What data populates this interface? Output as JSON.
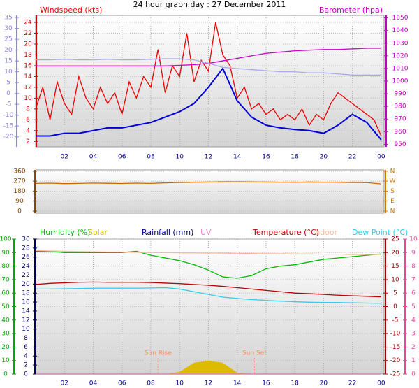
{
  "chart_data": [
    {
      "type": "line",
      "title": "24 hour graph day : 27 December 2011",
      "xlim": [
        0,
        24.2
      ],
      "xticks": [
        {
          "value": 2,
          "label": "02"
        },
        {
          "value": 4,
          "label": "04"
        },
        {
          "value": 6,
          "label": "06"
        },
        {
          "value": 8,
          "label": "08"
        },
        10,
        12,
        14,
        16,
        18,
        20,
        22,
        {
          "value": 24,
          "label": "00"
        }
      ],
      "ylim": [
        1,
        25.3
      ],
      "yticks": [
        2,
        4,
        6,
        8,
        10,
        12,
        14,
        16,
        18,
        20,
        22,
        24
      ],
      "y2lim": [
        948,
        1052
      ],
      "y2ticks": [
        950,
        960,
        970,
        980,
        990,
        1000,
        1010,
        1020,
        1030,
        1040,
        1050
      ],
      "y3lim": [
        -24.6,
        36
      ],
      "y3ticks": [
        -20,
        -15,
        -10,
        -5,
        0,
        5,
        10,
        15,
        20,
        25,
        30,
        35
      ],
      "axis_colors": {
        "y": "#cc0000",
        "y2": "#c000c0",
        "y3": "#8888dd"
      },
      "grid": true,
      "x": [
        0,
        1,
        2,
        3,
        4,
        5,
        6,
        7,
        8,
        9,
        10,
        11,
        12,
        13,
        14,
        15,
        16,
        17,
        18,
        19,
        20,
        21,
        22,
        23,
        24
      ],
      "series": [
        {
          "name": "Windspeed (kts)",
          "color": "#ee0000",
          "x": [
            0,
            0.5,
            1,
            1.5,
            2,
            2.5,
            3,
            3.5,
            4,
            4.5,
            5,
            5.5,
            6,
            6.5,
            7,
            7.5,
            8,
            8.5,
            9,
            9.5,
            10,
            10.5,
            11,
            11.5,
            12,
            12.5,
            13,
            13.5,
            14,
            14.5,
            15,
            15.5,
            16,
            16.5,
            17,
            17.5,
            18,
            18.5,
            19,
            19.5,
            20,
            20.5,
            21,
            21.5,
            22,
            22.5,
            23,
            23.5,
            24
          ],
          "values": [
            8,
            12,
            6,
            13,
            9,
            7,
            14,
            10,
            8,
            12,
            9,
            11,
            7,
            13,
            10,
            14,
            12,
            19,
            11,
            16,
            14,
            22,
            13,
            17,
            15,
            24,
            18,
            16,
            10,
            12,
            8,
            9,
            7,
            8,
            6,
            7,
            6,
            8,
            5,
            7,
            6,
            9,
            11,
            10,
            9,
            8,
            7,
            6,
            3
          ]
        },
        {
          "color": "#0000dd",
          "values": [
            3,
            3,
            3.5,
            3.5,
            4,
            4.5,
            4.5,
            5,
            5.5,
            6.5,
            7.5,
            9,
            12,
            15.5,
            9.5,
            6.5,
            5,
            4.5,
            4.2,
            4,
            3.5,
            5,
            7,
            5.5,
            2.3
          ]
        },
        {
          "name": "Barometer (hpa)",
          "color": "#cc00cc",
          "axis": "y2",
          "values": [
            1012,
            1012,
            1012,
            1012,
            1012,
            1012,
            1012,
            1012,
            1012,
            1012,
            1012.5,
            1013,
            1014,
            1016,
            1018,
            1020,
            1022,
            1023,
            1024,
            1024.5,
            1025,
            1025,
            1025.5,
            1026,
            1026
          ]
        },
        {
          "color": "#aaaaee",
          "axis": "y3",
          "values": [
            15.5,
            15.5,
            15.8,
            15.5,
            15.5,
            15.8,
            15.5,
            15.5,
            15.8,
            16,
            16,
            15.5,
            14,
            12,
            11.5,
            11,
            10.5,
            10,
            10,
            9.5,
            9.5,
            9,
            8.5,
            8.5,
            8.5
          ]
        }
      ]
    },
    {
      "type": "line",
      "xlim": [
        0,
        24.2
      ],
      "ylim": [
        -19,
        372
      ],
      "yticks": [
        0,
        90,
        180,
        270,
        360
      ],
      "y2lim": [
        -19,
        372
      ],
      "y2ticks": [
        {
          "value": 0,
          "label": "N"
        },
        {
          "value": 90,
          "label": "E"
        },
        {
          "value": 180,
          "label": "S"
        },
        {
          "value": 270,
          "label": "W"
        },
        {
          "value": 360,
          "label": "N"
        }
      ],
      "axis_colors": {
        "y": "#884400",
        "y2": "#cc7700"
      },
      "grid": true,
      "x": [
        0,
        1,
        2,
        3,
        4,
        5,
        6,
        7,
        8,
        9,
        10,
        11,
        12,
        13,
        14,
        15,
        16,
        17,
        18,
        19,
        20,
        21,
        22,
        23,
        24
      ],
      "series": [
        {
          "color": "#cc6600",
          "values": [
            250,
            252,
            248,
            250,
            253,
            251,
            249,
            252,
            250,
            255,
            258,
            260,
            262,
            264,
            265,
            263,
            262,
            261,
            260,
            262,
            261,
            260,
            258,
            257,
            245
          ]
        }
      ]
    },
    {
      "type": "line",
      "xlim": [
        0,
        24.2
      ],
      "xticks": [
        {
          "value": 2,
          "label": "02"
        },
        {
          "value": 4,
          "label": "04"
        },
        {
          "value": 6,
          "label": "06"
        },
        {
          "value": 8,
          "label": "08"
        },
        10,
        12,
        14,
        16,
        18,
        20,
        22,
        {
          "value": 24,
          "label": "00"
        }
      ],
      "ylim": [
        0,
        100
      ],
      "yticks": [
        0,
        10,
        20,
        30,
        40,
        50,
        60,
        70,
        80,
        90,
        100
      ],
      "y2lim": [
        0,
        30
      ],
      "y2ticks": [
        0,
        2,
        4,
        6,
        8,
        10,
        12,
        14,
        16,
        18,
        20,
        22,
        24,
        26,
        28,
        30
      ],
      "y3lim": [
        -25,
        25
      ],
      "y3ticks": [
        -25,
        -20,
        -15,
        -10,
        -5,
        0,
        5,
        10,
        15,
        20,
        25
      ],
      "y4lim": [
        0,
        10
      ],
      "y4ticks": [
        0,
        1,
        2,
        3,
        4,
        5,
        6,
        7,
        8,
        9,
        10
      ],
      "axis_colors": {
        "y": "#00aa00",
        "y2": "#000066",
        "y3": "#aa0000",
        "y4": "#ee4499"
      },
      "grid": true,
      "x": [
        0,
        1,
        2,
        3,
        4,
        5,
        6,
        7,
        8,
        9,
        10,
        11,
        12,
        13,
        14,
        15,
        16,
        17,
        18,
        19,
        20,
        21,
        22,
        23,
        24
      ],
      "series": [
        {
          "name": "Humidity (%)",
          "color": "#00bb00",
          "values": [
            91,
            91,
            90,
            90,
            90,
            90,
            90,
            91,
            88,
            86,
            84,
            81,
            77,
            72,
            71,
            73,
            78,
            80,
            81,
            83,
            85,
            86,
            87,
            88,
            89
          ]
        },
        {
          "name": "Solar",
          "color": "#ddbb00",
          "axis": "y2",
          "type": "area",
          "values": [
            0,
            0,
            0,
            0,
            0,
            0,
            0,
            0,
            0,
            0,
            0.5,
            2.5,
            3,
            2.5,
            0.3,
            0,
            0,
            0,
            0,
            0,
            0,
            0,
            0,
            0,
            0
          ]
        },
        {
          "name": "Rainfall (mm)",
          "color": "#000088",
          "axis": "y2",
          "values": [
            0,
            0,
            0,
            0,
            0,
            0,
            0,
            0,
            0,
            0,
            0,
            0,
            0,
            0,
            0,
            0,
            0,
            0,
            0,
            0,
            0,
            0,
            0,
            0,
            0
          ]
        },
        {
          "name": "UV",
          "color": "#ff88cc",
          "axis": "y4",
          "values": [
            0,
            0,
            0,
            0,
            0,
            0,
            0,
            0,
            0,
            0,
            0,
            0,
            0,
            0,
            0,
            0,
            0,
            0,
            0,
            0,
            0,
            0,
            0,
            0,
            0
          ]
        },
        {
          "name": "Temperature (°C)",
          "color": "#bb0000",
          "axis": "y3",
          "values": [
            8.2,
            8.6,
            8.8,
            9,
            9.1,
            9,
            9,
            9,
            8.9,
            8.7,
            8.5,
            8.2,
            7.9,
            7.5,
            7,
            6.5,
            6,
            5.5,
            5,
            4.8,
            4.5,
            4.2,
            4,
            3.8,
            3.6
          ]
        },
        {
          "name": "Indoor",
          "color": "#ffbb99",
          "axis": "y3",
          "values": [
            20.8,
            20.6,
            20.5,
            20.4,
            20.3,
            20.2,
            20.2,
            20.1,
            20,
            20,
            19.9,
            19.9,
            19.8,
            19.8,
            19.7,
            19.7,
            19.6,
            19.6,
            19.5,
            19.5,
            19.4,
            19.4,
            19.3,
            19.3,
            19.3
          ]
        },
        {
          "name": "Dew Point (°C)",
          "color": "#33ccee",
          "axis": "y3",
          "values": [
            6.5,
            6.5,
            6.6,
            6.7,
            6.8,
            6.8,
            6.8,
            6.8,
            6.9,
            7,
            6.5,
            5.5,
            4.5,
            3.5,
            3,
            2.6,
            2.3,
            2,
            1.8,
            1.6,
            1.5,
            1.5,
            1.4,
            1.3,
            1.2
          ]
        }
      ],
      "annotations": [
        {
          "text": "Sun Rise",
          "x": 8.5
        },
        {
          "text": "Sun Set",
          "x": 15.2
        }
      ]
    }
  ]
}
